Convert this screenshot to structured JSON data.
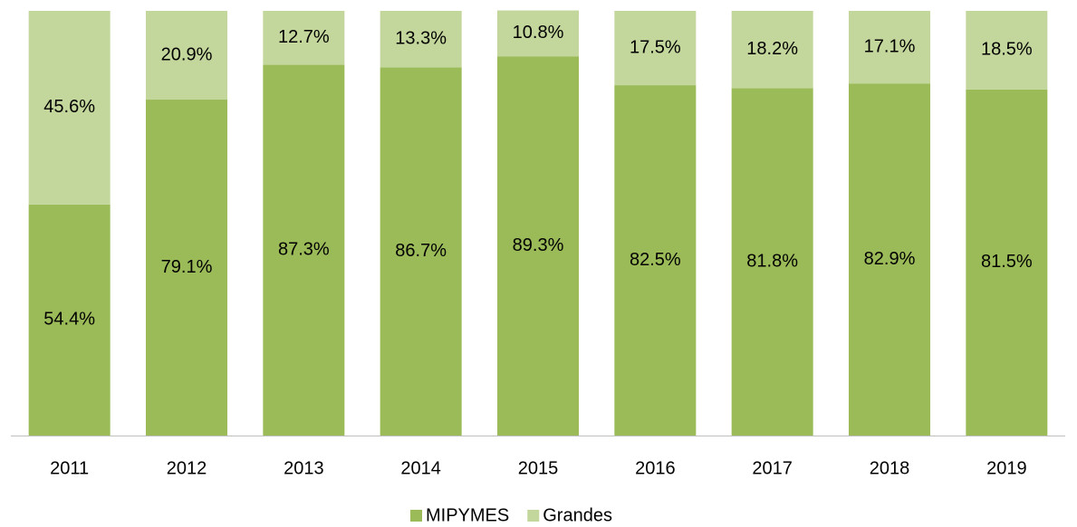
{
  "chart_data": {
    "type": "stacked_bar",
    "categories": [
      "2011",
      "2012",
      "2013",
      "2014",
      "2015",
      "2016",
      "2017",
      "2018",
      "2019"
    ],
    "series": [
      {
        "name": "MIPYMES",
        "color": "#9bbb59",
        "values": [
          54.4,
          79.1,
          87.3,
          86.7,
          89.3,
          82.5,
          81.8,
          82.9,
          81.5
        ],
        "value_labels": [
          "54.4%",
          "79.1%",
          "87.3%",
          "86.7%",
          "89.3%",
          "82.5%",
          "81.8%",
          "82.9%",
          "81.5%"
        ]
      },
      {
        "name": "Grandes",
        "color": "#c3d69b",
        "values": [
          45.6,
          20.9,
          12.7,
          13.3,
          10.8,
          17.5,
          18.2,
          17.1,
          18.5
        ],
        "value_labels": [
          "45.6%",
          "20.9%",
          "12.7%",
          "13.3%",
          "10.8%",
          "17.5%",
          "18.2%",
          "17.1%",
          "18.5%"
        ]
      }
    ],
    "ylim": [
      0,
      100
    ],
    "legend": "bottom"
  }
}
